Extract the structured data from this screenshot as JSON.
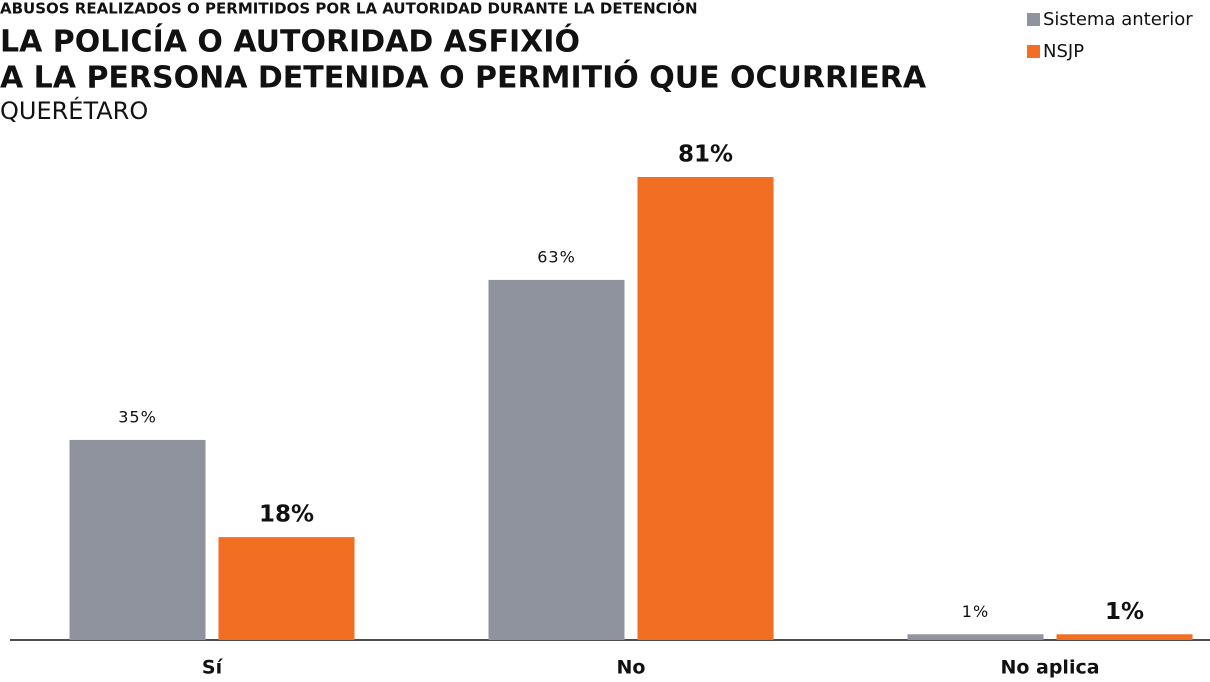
{
  "chart_data": {
    "type": "bar",
    "supertitle": "ABUSOS REALIZADOS O PERMITIDOS POR LA AUTORIDAD DURANTE LA DETENCIÓN",
    "title": [
      "LA POLICÍA O AUTORIDAD ASFIXIÓ",
      "A LA PERSONA DETENIDA O PERMITIÓ QUE OCURRIERA"
    ],
    "subtitle": "QUERÉTARO",
    "categories": [
      "Sí",
      "No",
      "No aplica"
    ],
    "series": [
      {
        "name": "Sistema anterior",
        "color": "#8f939e",
        "values": [
          35,
          63,
          1
        ],
        "value_labels": [
          "35%",
          "63%",
          "1%"
        ]
      },
      {
        "name": "NSJP",
        "color": "#f26e22",
        "values": [
          18,
          81,
          1
        ],
        "value_labels": [
          "18%",
          "81%",
          "1%"
        ]
      }
    ],
    "legend": "top-right"
  }
}
